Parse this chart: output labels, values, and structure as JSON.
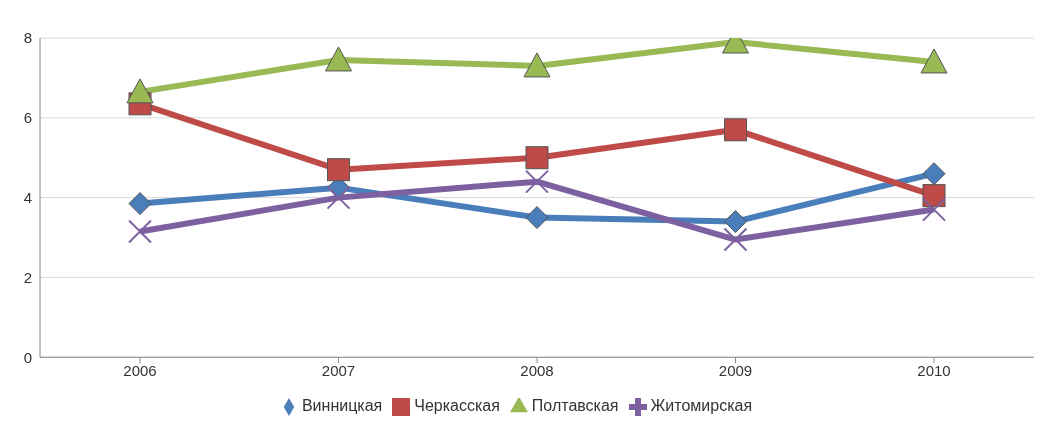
{
  "chart_data": {
    "type": "line",
    "categories": [
      "2006",
      "2007",
      "2008",
      "2009",
      "2010"
    ],
    "series": [
      {
        "name": "Винницкая",
        "color": "#4a7ebb",
        "marker": "diamond",
        "values": [
          3.85,
          4.25,
          3.5,
          3.4,
          4.6
        ]
      },
      {
        "name": "Черкасская",
        "color": "#be4b48",
        "marker": "square",
        "values": [
          6.35,
          4.7,
          5.0,
          5.7,
          4.05
        ]
      },
      {
        "name": "Полтавская",
        "color": "#98b954",
        "marker": "triangle",
        "values": [
          6.65,
          7.45,
          7.3,
          7.9,
          7.4
        ]
      },
      {
        "name": "Житомирская",
        "color": "#7d60a0",
        "marker": "cross",
        "values": [
          3.15,
          4.0,
          4.4,
          2.95,
          3.7
        ]
      }
    ],
    "ylim": [
      0,
      8
    ],
    "yticks": [
      0,
      2,
      4,
      6,
      8
    ],
    "grid": "y",
    "legend": "bottom",
    "line_style": "solid"
  }
}
